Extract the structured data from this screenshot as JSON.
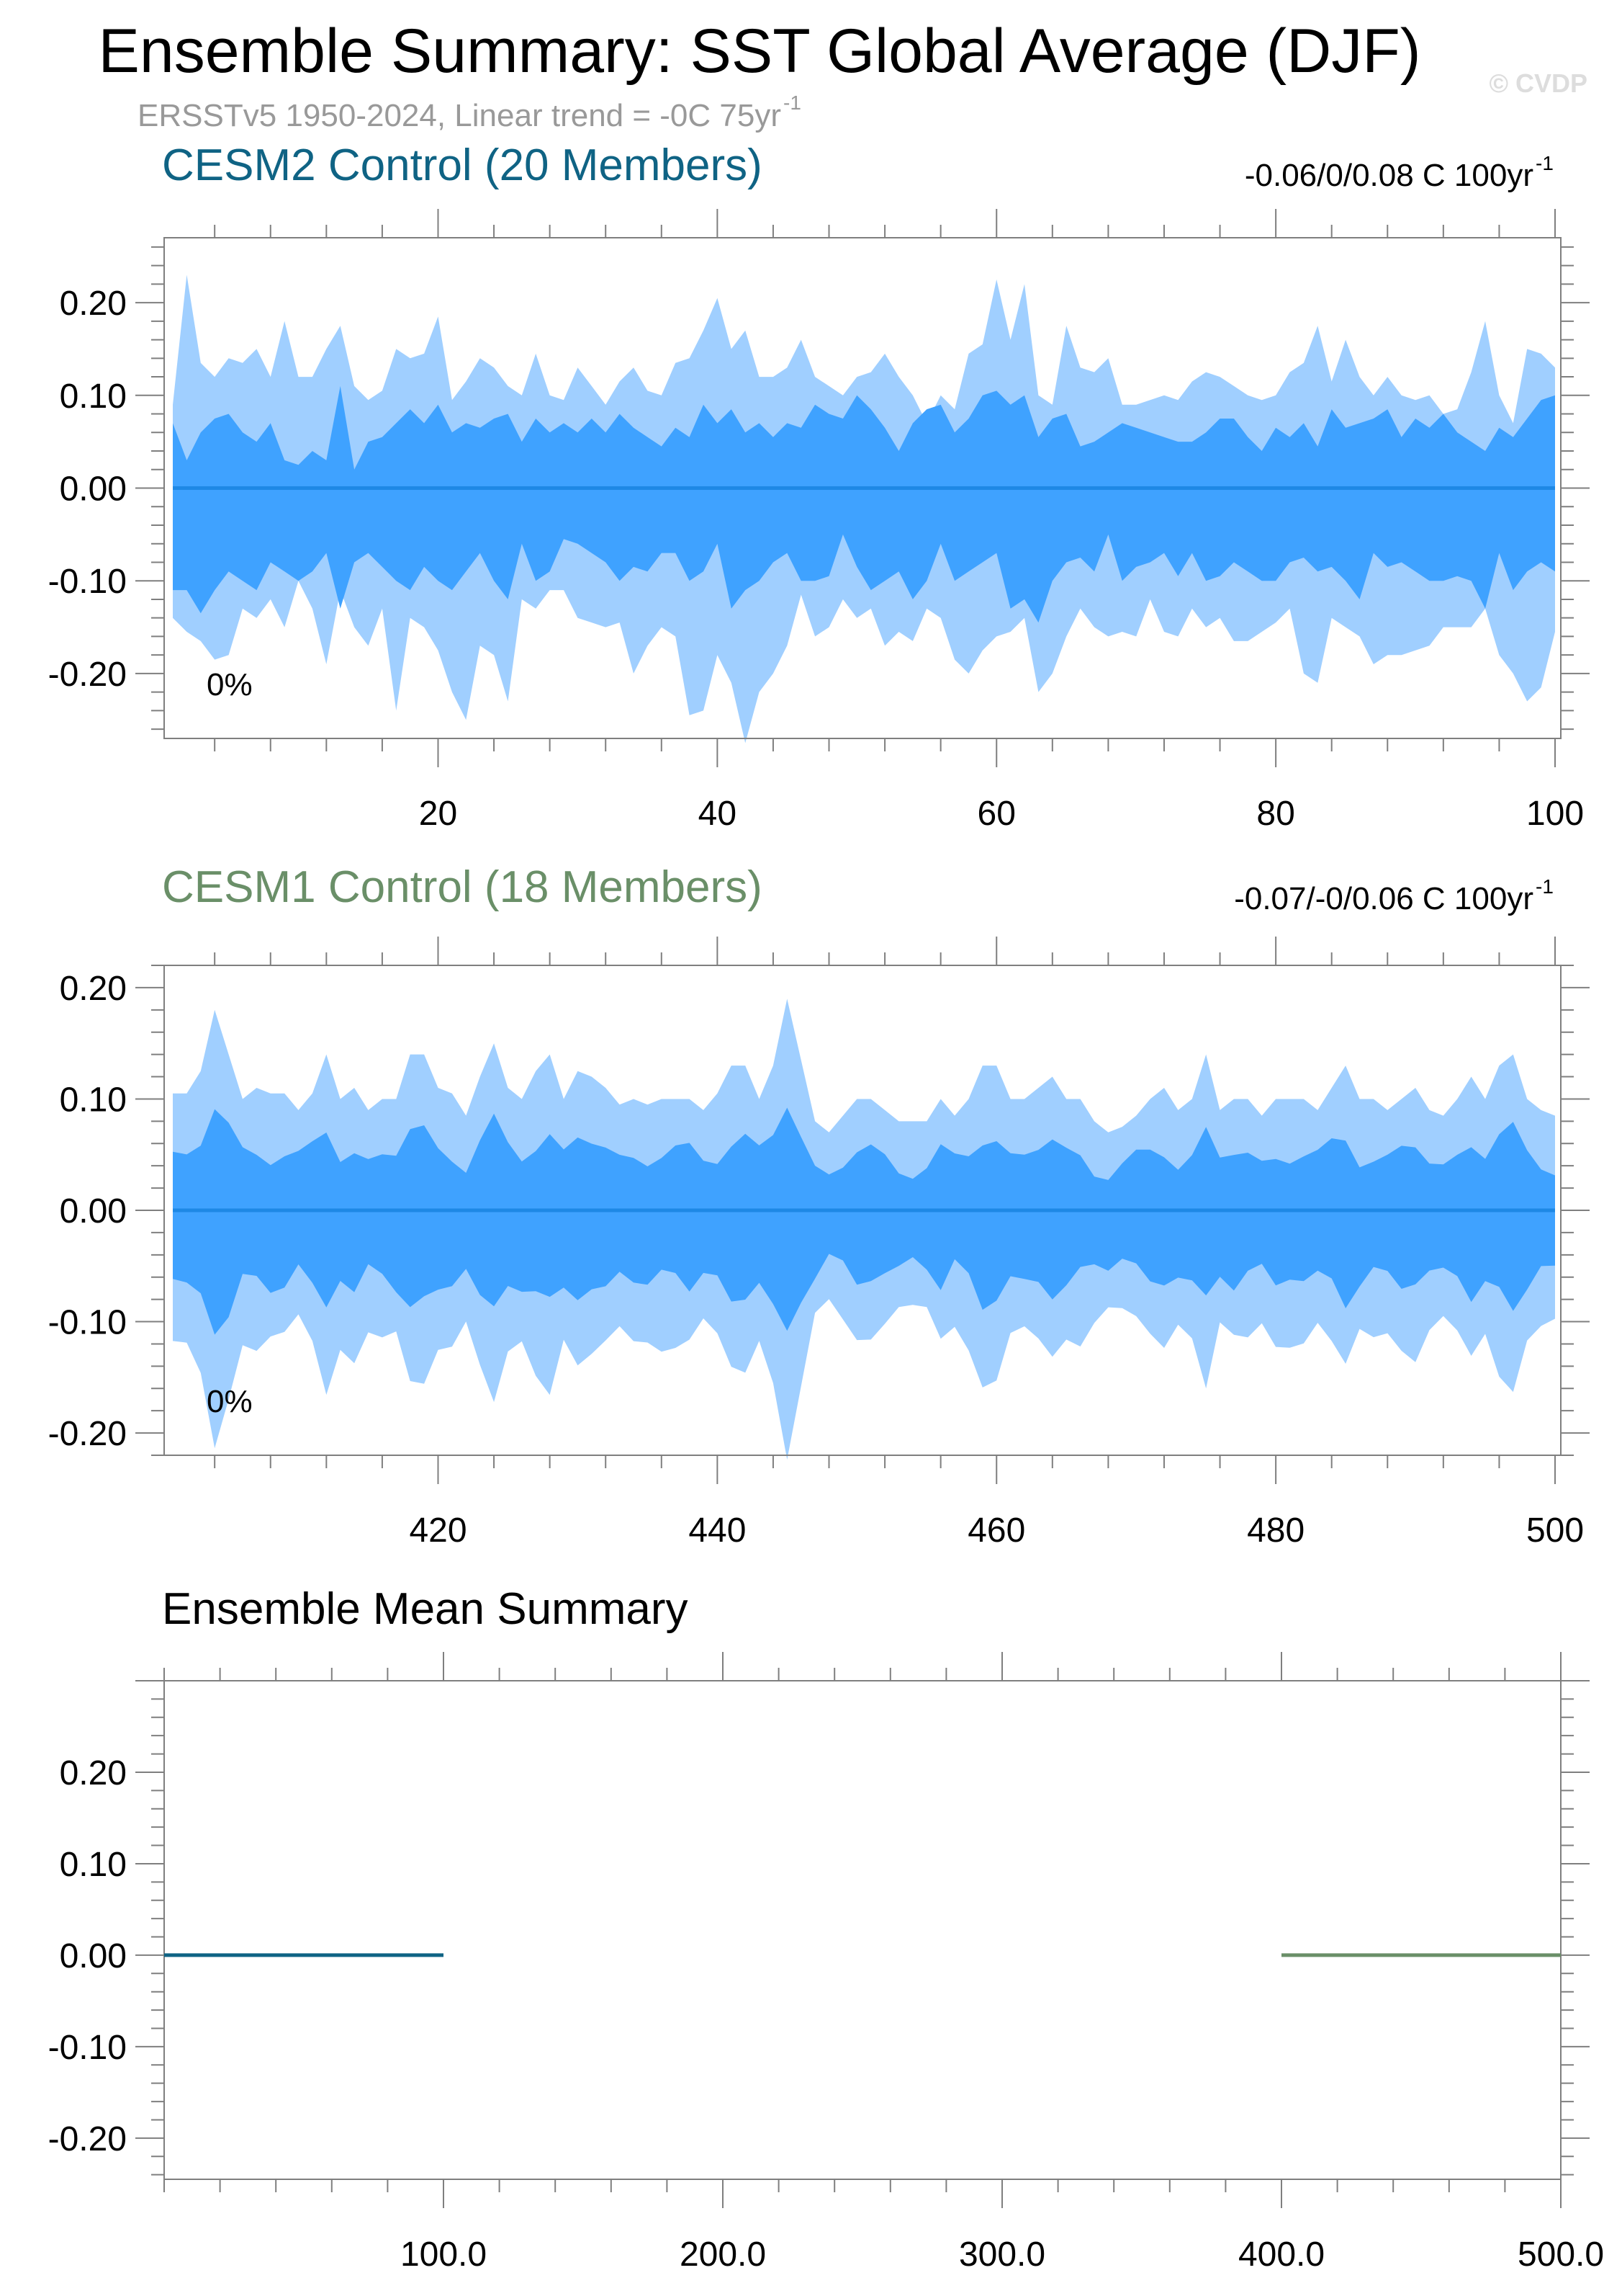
{
  "title": "Ensemble Summary: SST Global Average (DJF)",
  "subtitle": "ERSSTv5 1950-2024, Linear trend = -0C 75yr",
  "subtitle_sup": "-1",
  "watermark": "© CVDP",
  "colors": {
    "outer_band": "#a0cfff",
    "inner_band": "#3fa2ff",
    "median_line": "#1e88e5",
    "cesm2": "#0f6384",
    "cesm1": "#6a8f68",
    "frame": "#7f7f7f"
  },
  "chart_data": [
    {
      "type": "area",
      "title": "CESM2 Control (20 Members)",
      "title_color": "#0f6384",
      "trend_label": "-0.06/0/0.08 C 100yr",
      "trend_sup": "-1",
      "percent_label": "0%",
      "xlim": [
        1,
        100
      ],
      "ylim": [
        -0.27,
        0.27
      ],
      "x_ticks": [
        20,
        40,
        60,
        80,
        100
      ],
      "y_ticks": [
        -0.2,
        -0.1,
        0.0,
        0.1,
        0.2
      ],
      "y_tick_labels": [
        "-0.20",
        "-0.10",
        "0.00",
        "0.10",
        "0.20"
      ],
      "x_tick_labels": [
        "20",
        "40",
        "60",
        "80",
        "100"
      ],
      "median": 0.0,
      "upper_outer": [
        0.09,
        0.23,
        0.135,
        0.12,
        0.14,
        0.135,
        0.15,
        0.12,
        0.18,
        0.12,
        0.12,
        0.15,
        0.175,
        0.11,
        0.095,
        0.105,
        0.15,
        0.14,
        0.145,
        0.185,
        0.095,
        0.115,
        0.14,
        0.13,
        0.11,
        0.1,
        0.145,
        0.1,
        0.095,
        0.13,
        0.11,
        0.09,
        0.115,
        0.13,
        0.105,
        0.1,
        0.135,
        0.14,
        0.17,
        0.205,
        0.15,
        0.17,
        0.12,
        0.12,
        0.13,
        0.16,
        0.12,
        0.11,
        0.1,
        0.12,
        0.125,
        0.145,
        0.12,
        0.1,
        0.07,
        0.1,
        0.085,
        0.145,
        0.155,
        0.225,
        0.16,
        0.22,
        0.1,
        0.09,
        0.175,
        0.13,
        0.125,
        0.14,
        0.09,
        0.09,
        0.095,
        0.1,
        0.095,
        0.115,
        0.125,
        0.12,
        0.11,
        0.1,
        0.095,
        0.1,
        0.125,
        0.135,
        0.175,
        0.115,
        0.16,
        0.12,
        0.1,
        0.12,
        0.1,
        0.095,
        0.1,
        0.08,
        0.085,
        0.125,
        0.18,
        0.1,
        0.07,
        0.15,
        0.145,
        0.13
      ],
      "upper_inner": [
        0.07,
        0.03,
        0.06,
        0.075,
        0.08,
        0.06,
        0.05,
        0.07,
        0.03,
        0.025,
        0.04,
        0.03,
        0.11,
        0.02,
        0.05,
        0.055,
        0.07,
        0.085,
        0.07,
        0.09,
        0.06,
        0.07,
        0.065,
        0.075,
        0.08,
        0.05,
        0.075,
        0.06,
        0.07,
        0.06,
        0.075,
        0.06,
        0.08,
        0.065,
        0.055,
        0.045,
        0.065,
        0.055,
        0.09,
        0.07,
        0.085,
        0.06,
        0.07,
        0.055,
        0.07,
        0.065,
        0.09,
        0.08,
        0.075,
        0.1,
        0.085,
        0.065,
        0.04,
        0.07,
        0.085,
        0.09,
        0.06,
        0.075,
        0.1,
        0.105,
        0.09,
        0.1,
        0.055,
        0.075,
        0.08,
        0.045,
        0.05,
        0.06,
        0.07,
        0.065,
        0.06,
        0.055,
        0.05,
        0.05,
        0.06,
        0.075,
        0.075,
        0.055,
        0.04,
        0.065,
        0.055,
        0.07,
        0.045,
        0.085,
        0.065,
        0.07,
        0.075,
        0.085,
        0.055,
        0.075,
        0.065,
        0.08,
        0.06,
        0.05,
        0.04,
        0.065,
        0.055,
        0.075,
        0.095,
        0.1
      ],
      "lower_inner": [
        -0.11,
        -0.11,
        -0.135,
        -0.11,
        -0.09,
        -0.1,
        -0.11,
        -0.08,
        -0.09,
        -0.1,
        -0.09,
        -0.07,
        -0.13,
        -0.08,
        -0.07,
        -0.085,
        -0.1,
        -0.11,
        -0.085,
        -0.1,
        -0.11,
        -0.09,
        -0.07,
        -0.1,
        -0.12,
        -0.06,
        -0.1,
        -0.09,
        -0.055,
        -0.06,
        -0.07,
        -0.08,
        -0.1,
        -0.085,
        -0.09,
        -0.07,
        -0.07,
        -0.1,
        -0.09,
        -0.06,
        -0.13,
        -0.11,
        -0.1,
        -0.08,
        -0.07,
        -0.1,
        -0.1,
        -0.095,
        -0.05,
        -0.085,
        -0.11,
        -0.1,
        -0.09,
        -0.12,
        -0.1,
        -0.06,
        -0.1,
        -0.09,
        -0.08,
        -0.07,
        -0.13,
        -0.12,
        -0.145,
        -0.1,
        -0.08,
        -0.075,
        -0.09,
        -0.05,
        -0.1,
        -0.085,
        -0.08,
        -0.07,
        -0.095,
        -0.07,
        -0.1,
        -0.095,
        -0.08,
        -0.09,
        -0.1,
        -0.1,
        -0.08,
        -0.075,
        -0.09,
        -0.085,
        -0.1,
        -0.12,
        -0.07,
        -0.085,
        -0.08,
        -0.09,
        -0.1,
        -0.1,
        -0.095,
        -0.1,
        -0.13,
        -0.07,
        -0.11,
        -0.09,
        -0.08,
        -0.09
      ],
      "lower_outer": [
        -0.14,
        -0.155,
        -0.165,
        -0.185,
        -0.18,
        -0.13,
        -0.14,
        -0.12,
        -0.15,
        -0.1,
        -0.13,
        -0.19,
        -0.11,
        -0.15,
        -0.17,
        -0.13,
        -0.24,
        -0.14,
        -0.15,
        -0.175,
        -0.22,
        -0.25,
        -0.17,
        -0.18,
        -0.23,
        -0.12,
        -0.13,
        -0.11,
        -0.11,
        -0.14,
        -0.145,
        -0.15,
        -0.145,
        -0.2,
        -0.17,
        -0.15,
        -0.16,
        -0.245,
        -0.24,
        -0.18,
        -0.21,
        -0.275,
        -0.22,
        -0.2,
        -0.17,
        -0.115,
        -0.16,
        -0.15,
        -0.12,
        -0.14,
        -0.13,
        -0.17,
        -0.155,
        -0.165,
        -0.13,
        -0.14,
        -0.185,
        -0.2,
        -0.175,
        -0.16,
        -0.155,
        -0.14,
        -0.22,
        -0.2,
        -0.16,
        -0.13,
        -0.15,
        -0.16,
        -0.155,
        -0.16,
        -0.12,
        -0.155,
        -0.16,
        -0.13,
        -0.15,
        -0.14,
        -0.165,
        -0.165,
        -0.155,
        -0.145,
        -0.13,
        -0.2,
        -0.21,
        -0.14,
        -0.15,
        -0.16,
        -0.19,
        -0.18,
        -0.18,
        -0.175,
        -0.17,
        -0.15,
        -0.15,
        -0.15,
        -0.13,
        -0.18,
        -0.2,
        -0.23,
        -0.215,
        -0.155
      ]
    },
    {
      "type": "area",
      "title": "CESM1 Control (18 Members)",
      "title_color": "#6a8f68",
      "trend_label": "-0.07/-0/0.06 C 100yr",
      "trend_sup": "-1",
      "percent_label": "0%",
      "xlim": [
        401,
        500
      ],
      "ylim": [
        -0.22,
        0.22
      ],
      "x_ticks": [
        420,
        440,
        460,
        480,
        500
      ],
      "y_ticks": [
        -0.2,
        -0.1,
        0.0,
        0.1,
        0.2
      ],
      "y_tick_labels": [
        "-0.20",
        "-0.10",
        "0.00",
        "0.10",
        "0.20"
      ],
      "x_tick_labels": [
        "420",
        "440",
        "460",
        "480",
        "500"
      ],
      "median": 0.0,
      "upper_outer": [
        0.105,
        0.105,
        0.125,
        0.18,
        0.14,
        0.1,
        0.11,
        0.105,
        0.105,
        0.09,
        0.105,
        0.14,
        0.1,
        0.11,
        0.09,
        0.1,
        0.1,
        0.14,
        0.14,
        0.11,
        0.105,
        0.085,
        0.12,
        0.15,
        0.11,
        0.1,
        0.125,
        0.14,
        0.1,
        0.125,
        0.12,
        0.11,
        0.095,
        0.1,
        0.095,
        0.1,
        0.1,
        0.1,
        0.09,
        0.105,
        0.13,
        0.13,
        0.1,
        0.13,
        0.19,
        0.135,
        0.08,
        0.07,
        0.085,
        0.1,
        0.1,
        0.09,
        0.08,
        0.08,
        0.08,
        0.1,
        0.085,
        0.1,
        0.13,
        0.13,
        0.1,
        0.1,
        0.11,
        0.12,
        0.1,
        0.1,
        0.08,
        0.07,
        0.075,
        0.085,
        0.1,
        0.11,
        0.09,
        0.1,
        0.14,
        0.09,
        0.1,
        0.1,
        0.085,
        0.1,
        0.1,
        0.1,
        0.09,
        0.11,
        0.13,
        0.1,
        0.1,
        0.09,
        0.1,
        0.11,
        0.09,
        0.085,
        0.1,
        0.12,
        0.1,
        0.13,
        0.14,
        0.1,
        0.09,
        0.085
      ]
    },
    {
      "type": "line",
      "title": "Ensemble Mean Summary",
      "xlim": [
        0,
        500
      ],
      "ylim": [
        -0.245,
        0.3
      ],
      "x_ticks": [
        100,
        200,
        300,
        400,
        500
      ],
      "x_tick_labels": [
        "100.0",
        "200.0",
        "300.0",
        "400.0",
        "500.0"
      ],
      "y_ticks": [
        -0.2,
        -0.1,
        0.0,
        0.1,
        0.2
      ],
      "y_tick_labels": [
        "-0.20",
        "-0.10",
        "0.00",
        "0.10",
        "0.20"
      ],
      "series": [
        {
          "x": [
            0,
            100
          ],
          "y": [
            0.0,
            0.0
          ],
          "color": "#0f6384"
        },
        {
          "x": [
            400,
            500
          ],
          "y": [
            0.0,
            0.0
          ],
          "color": "#6a8f68"
        }
      ]
    }
  ]
}
